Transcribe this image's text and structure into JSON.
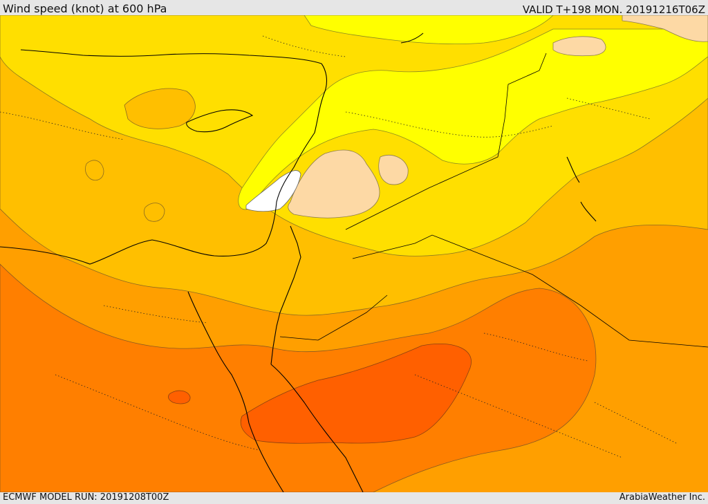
{
  "header": {
    "title": "Wind speed (knot) at 600 hPa",
    "valid": "VALID T+198 MON. 20191216T06Z"
  },
  "footer": {
    "model_run": "ECMWF MODEL RUN: 20191208T00Z",
    "credit": "ArabiaWeather Inc."
  },
  "palette": {
    "peach": "#fdd9a5",
    "yellow": "#ffff00",
    "gold": "#ffdf00",
    "light_orange": "#ffbf00",
    "orange": "#ff9f00",
    "deep_orange": "#ff7f00",
    "red_orange": "#ff6000",
    "white": "#ffffff"
  }
}
